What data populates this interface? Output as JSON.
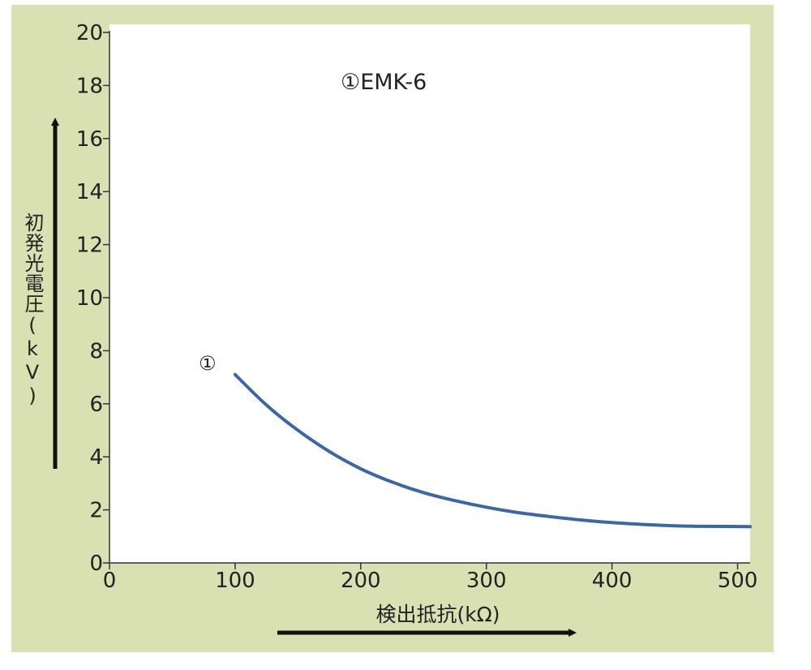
{
  "chart_data": {
    "type": "line",
    "title": "",
    "legend_text": "①EMK-6",
    "xlabel": "検出抵抗(kΩ)",
    "ylabel": "初発光電圧(kV)",
    "xlim": [
      0,
      510
    ],
    "ylim": [
      0,
      20
    ],
    "x_ticks": [
      "0",
      "100",
      "200",
      "300",
      "400",
      "500"
    ],
    "y_ticks": [
      "0",
      "2",
      "4",
      "6",
      "8",
      "10",
      "12",
      "14",
      "16",
      "18",
      "20"
    ],
    "series": [
      {
        "name": "①",
        "color": "#3a67a8",
        "x": [
          100,
          125,
          150,
          175,
          200,
          225,
          250,
          275,
          300,
          325,
          350,
          375,
          400,
          425,
          450,
          475,
          510
        ],
        "y": [
          7.1,
          5.95,
          5.0,
          4.2,
          3.55,
          3.05,
          2.65,
          2.35,
          2.1,
          1.9,
          1.75,
          1.62,
          1.52,
          1.45,
          1.4,
          1.38,
          1.37
        ]
      }
    ],
    "grid": false,
    "legend_position": "top-center"
  }
}
